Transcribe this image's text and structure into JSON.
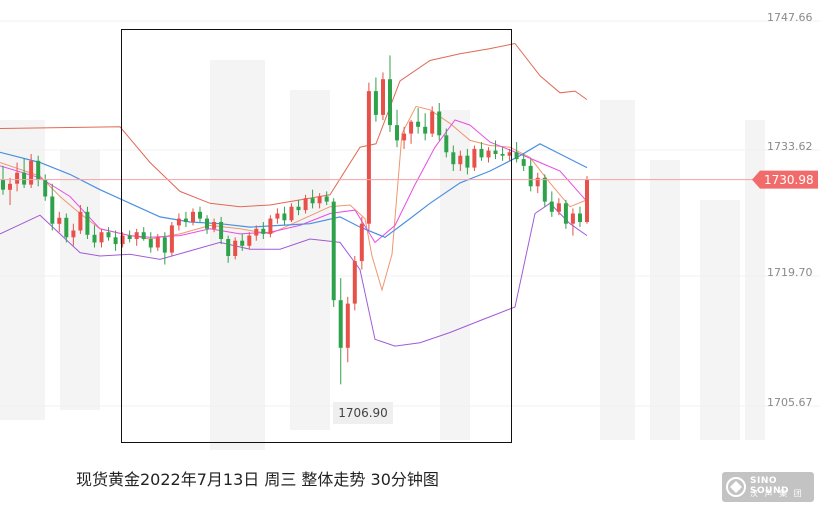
{
  "chart_data": {
    "type": "candlestick",
    "title": "现货黄金2022年7月13日 周三 整体走势 30分钟图",
    "ylim": [
      1700.0,
      1750.0
    ],
    "y_ticks": [
      "1747.66",
      "1733.62",
      "1719.70",
      "1705.67"
    ],
    "current_price": "1730.98",
    "low_label": "1706.90",
    "grid": false,
    "colors": {
      "up": "#e8504a",
      "down": "#2ea24a",
      "upper_band": "#e06a55",
      "lower_band": "#a15bd6",
      "ma_blue": "#4a90e2",
      "ma_magenta": "#e84ce8",
      "ma_orange": "#f0966e",
      "price_line": "#f3a3a3",
      "current_badge": "#f26b6b",
      "box": "#111111"
    },
    "candles": [
      [
        1731.0,
        1732.6,
        1729.2,
        1729.8
      ],
      [
        1729.8,
        1731.2,
        1728.0,
        1730.5
      ],
      [
        1730.5,
        1733.0,
        1729.6,
        1731.8
      ],
      [
        1731.8,
        1733.5,
        1730.0,
        1730.4
      ],
      [
        1730.4,
        1734.0,
        1730.0,
        1733.2
      ],
      [
        1733.2,
        1733.8,
        1730.2,
        1731.0
      ],
      [
        1731.0,
        1731.6,
        1728.5,
        1729.0
      ],
      [
        1729.0,
        1730.5,
        1725.0,
        1725.8
      ],
      [
        1725.8,
        1727.2,
        1724.8,
        1726.5
      ],
      [
        1726.5,
        1727.0,
        1723.6,
        1724.2
      ],
      [
        1724.2,
        1725.8,
        1723.2,
        1725.0
      ],
      [
        1725.0,
        1728.0,
        1724.6,
        1727.2
      ],
      [
        1727.2,
        1727.8,
        1724.0,
        1724.5
      ],
      [
        1724.5,
        1725.6,
        1723.0,
        1723.6
      ],
      [
        1723.6,
        1725.2,
        1723.0,
        1724.8
      ],
      [
        1724.8,
        1725.4,
        1723.8,
        1724.2
      ],
      [
        1724.2,
        1725.0,
        1722.6,
        1723.4
      ],
      [
        1723.4,
        1724.8,
        1723.0,
        1724.4
      ],
      [
        1724.4,
        1725.0,
        1723.6,
        1724.0
      ],
      [
        1724.0,
        1725.2,
        1723.2,
        1724.8
      ],
      [
        1724.8,
        1725.4,
        1723.8,
        1724.0
      ],
      [
        1724.0,
        1724.8,
        1722.4,
        1723.0
      ],
      [
        1723.0,
        1724.6,
        1722.6,
        1724.2
      ],
      [
        1724.2,
        1724.8,
        1721.0,
        1722.4
      ],
      [
        1722.4,
        1726.0,
        1722.0,
        1725.6
      ],
      [
        1725.6,
        1727.0,
        1725.0,
        1726.4
      ],
      [
        1726.4,
        1727.2,
        1725.4,
        1726.0
      ],
      [
        1726.0,
        1727.6,
        1725.6,
        1727.2
      ],
      [
        1727.2,
        1727.8,
        1726.0,
        1726.4
      ],
      [
        1726.4,
        1726.8,
        1724.6,
        1725.2
      ],
      [
        1725.2,
        1726.4,
        1724.8,
        1726.0
      ],
      [
        1726.0,
        1726.6,
        1723.4,
        1724.0
      ],
      [
        1724.0,
        1724.4,
        1721.2,
        1722.0
      ],
      [
        1722.0,
        1724.2,
        1721.6,
        1723.8
      ],
      [
        1723.8,
        1724.6,
        1722.6,
        1723.2
      ],
      [
        1723.2,
        1724.8,
        1722.8,
        1724.4
      ],
      [
        1724.4,
        1725.6,
        1723.8,
        1725.2
      ],
      [
        1725.2,
        1726.0,
        1724.0,
        1724.6
      ],
      [
        1724.6,
        1726.8,
        1724.2,
        1726.4
      ],
      [
        1726.4,
        1727.6,
        1725.8,
        1727.0
      ],
      [
        1727.0,
        1727.8,
        1725.6,
        1726.2
      ],
      [
        1726.2,
        1728.2,
        1726.0,
        1727.8
      ],
      [
        1727.8,
        1728.6,
        1726.8,
        1727.4
      ],
      [
        1727.4,
        1729.2,
        1727.0,
        1728.8
      ],
      [
        1728.8,
        1729.8,
        1727.6,
        1728.2
      ],
      [
        1728.2,
        1729.4,
        1727.6,
        1729.0
      ],
      [
        1729.0,
        1729.6,
        1728.0,
        1728.4
      ],
      [
        1728.4,
        1728.8,
        1716.0,
        1716.8
      ],
      [
        1716.8,
        1719.4,
        1706.9,
        1711.2
      ],
      [
        1711.2,
        1717.2,
        1709.5,
        1716.4
      ],
      [
        1716.4,
        1722.0,
        1715.6,
        1721.4
      ],
      [
        1721.4,
        1726.6,
        1720.4,
        1725.8
      ],
      [
        1725.8,
        1742.4,
        1725.0,
        1741.4
      ],
      [
        1741.4,
        1743.0,
        1737.8,
        1738.6
      ],
      [
        1738.6,
        1743.6,
        1738.0,
        1742.8
      ],
      [
        1742.8,
        1745.6,
        1736.6,
        1737.4
      ],
      [
        1737.4,
        1739.2,
        1734.8,
        1735.6
      ],
      [
        1735.6,
        1737.2,
        1734.6,
        1736.4
      ],
      [
        1736.4,
        1738.0,
        1735.2,
        1737.8
      ],
      [
        1737.8,
        1739.4,
        1736.4,
        1737.2
      ],
      [
        1737.2,
        1738.8,
        1735.6,
        1736.4
      ],
      [
        1736.4,
        1739.6,
        1736.0,
        1739.0
      ],
      [
        1739.0,
        1740.0,
        1735.6,
        1736.2
      ],
      [
        1736.2,
        1737.0,
        1733.6,
        1734.2
      ],
      [
        1734.2,
        1735.0,
        1732.0,
        1732.8
      ],
      [
        1732.8,
        1734.4,
        1732.0,
        1733.8
      ],
      [
        1733.8,
        1734.6,
        1731.6,
        1732.4
      ],
      [
        1732.4,
        1735.0,
        1732.0,
        1734.6
      ],
      [
        1734.6,
        1735.4,
        1733.2,
        1733.6
      ],
      [
        1733.6,
        1734.8,
        1733.0,
        1734.4
      ],
      [
        1734.4,
        1735.6,
        1733.4,
        1734.0
      ],
      [
        1734.0,
        1734.8,
        1733.2,
        1733.8
      ],
      [
        1733.8,
        1734.6,
        1733.2,
        1734.2
      ],
      [
        1734.2,
        1735.4,
        1733.0,
        1733.4
      ],
      [
        1733.4,
        1734.0,
        1732.0,
        1732.6
      ],
      [
        1732.6,
        1733.4,
        1729.6,
        1730.2
      ],
      [
        1730.2,
        1731.8,
        1729.4,
        1731.2
      ],
      [
        1731.2,
        1731.6,
        1727.8,
        1728.4
      ],
      [
        1728.4,
        1729.6,
        1726.6,
        1727.2
      ],
      [
        1727.2,
        1728.8,
        1726.8,
        1728.2
      ],
      [
        1728.2,
        1728.6,
        1725.2,
        1725.8
      ],
      [
        1725.8,
        1727.6,
        1724.4,
        1727.0
      ],
      [
        1727.0,
        1727.8,
        1725.4,
        1726.0
      ],
      [
        1726.0,
        1731.4,
        1725.8,
        1730.98
      ]
    ],
    "upper_band": [
      [
        0,
        1737.0
      ],
      [
        120,
        1737.2
      ],
      [
        150,
        1733.0
      ],
      [
        180,
        1729.6
      ],
      [
        210,
        1728.2
      ],
      [
        240,
        1727.8
      ],
      [
        270,
        1728.0
      ],
      [
        300,
        1728.6
      ],
      [
        330,
        1729.2
      ],
      [
        360,
        1734.8
      ],
      [
        376,
        1735.2
      ],
      [
        400,
        1742.6
      ],
      [
        430,
        1745.0
      ],
      [
        460,
        1745.8
      ],
      [
        490,
        1746.4
      ],
      [
        515,
        1747.0
      ],
      [
        540,
        1743.2
      ],
      [
        560,
        1741.2
      ],
      [
        575,
        1741.4
      ],
      [
        587,
        1740.4
      ]
    ],
    "lower_band": [
      [
        0,
        1724.6
      ],
      [
        40,
        1726.8
      ],
      [
        80,
        1722.4
      ],
      [
        100,
        1722.0
      ],
      [
        130,
        1722.2
      ],
      [
        160,
        1721.6
      ],
      [
        190,
        1722.6
      ],
      [
        220,
        1723.6
      ],
      [
        250,
        1722.8
      ],
      [
        280,
        1722.8
      ],
      [
        310,
        1724.0
      ],
      [
        340,
        1723.6
      ],
      [
        360,
        1720.4
      ],
      [
        375,
        1712.2
      ],
      [
        395,
        1711.4
      ],
      [
        420,
        1711.8
      ],
      [
        450,
        1713.0
      ],
      [
        480,
        1714.4
      ],
      [
        515,
        1716.0
      ],
      [
        535,
        1727.0
      ],
      [
        550,
        1728.2
      ],
      [
        570,
        1725.8
      ],
      [
        587,
        1724.4
      ]
    ],
    "ma_blue": [
      [
        0,
        1734.2
      ],
      [
        40,
        1733.0
      ],
      [
        70,
        1731.6
      ],
      [
        100,
        1729.8
      ],
      [
        130,
        1728.2
      ],
      [
        160,
        1726.6
      ],
      [
        190,
        1726.0
      ],
      [
        220,
        1725.8
      ],
      [
        250,
        1725.4
      ],
      [
        280,
        1725.6
      ],
      [
        310,
        1725.8
      ],
      [
        340,
        1726.6
      ],
      [
        360,
        1725.4
      ],
      [
        385,
        1724.2
      ],
      [
        410,
        1726.4
      ],
      [
        430,
        1728.2
      ],
      [
        460,
        1730.6
      ],
      [
        490,
        1732.0
      ],
      [
        520,
        1733.8
      ],
      [
        540,
        1735.2
      ],
      [
        560,
        1734.0
      ],
      [
        587,
        1732.4
      ]
    ],
    "ma_magenta": [
      [
        0,
        1732.6
      ],
      [
        40,
        1731.2
      ],
      [
        70,
        1729.0
      ],
      [
        100,
        1725.2
      ],
      [
        130,
        1724.4
      ],
      [
        150,
        1724.2
      ],
      [
        180,
        1724.4
      ],
      [
        210,
        1725.2
      ],
      [
        240,
        1724.6
      ],
      [
        270,
        1724.8
      ],
      [
        300,
        1725.6
      ],
      [
        330,
        1727.0
      ],
      [
        355,
        1727.4
      ],
      [
        375,
        1723.6
      ],
      [
        395,
        1725.6
      ],
      [
        415,
        1730.4
      ],
      [
        435,
        1734.8
      ],
      [
        455,
        1738.0
      ],
      [
        470,
        1737.4
      ],
      [
        490,
        1735.4
      ],
      [
        520,
        1734.0
      ],
      [
        540,
        1733.0
      ],
      [
        560,
        1732.0
      ],
      [
        587,
        1728.4
      ]
    ],
    "ma_orange": [
      [
        0,
        1733.0
      ],
      [
        20,
        1732.2
      ],
      [
        40,
        1731.4
      ],
      [
        60,
        1729.0
      ],
      [
        80,
        1727.0
      ],
      [
        100,
        1725.2
      ],
      [
        130,
        1724.4
      ],
      [
        150,
        1724.0
      ],
      [
        180,
        1724.6
      ],
      [
        210,
        1725.6
      ],
      [
        240,
        1725.2
      ],
      [
        270,
        1724.6
      ],
      [
        300,
        1726.2
      ],
      [
        330,
        1727.8
      ],
      [
        350,
        1728.0
      ],
      [
        365,
        1726.4
      ],
      [
        372,
        1722.0
      ],
      [
        382,
        1718.0
      ],
      [
        392,
        1722.2
      ],
      [
        402,
        1736.4
      ],
      [
        416,
        1739.6
      ],
      [
        430,
        1739.2
      ],
      [
        450,
        1737.6
      ],
      [
        470,
        1735.6
      ],
      [
        490,
        1735.0
      ],
      [
        510,
        1734.8
      ],
      [
        530,
        1733.6
      ],
      [
        550,
        1730.6
      ],
      [
        570,
        1727.8
      ],
      [
        587,
        1728.6
      ]
    ]
  }
}
